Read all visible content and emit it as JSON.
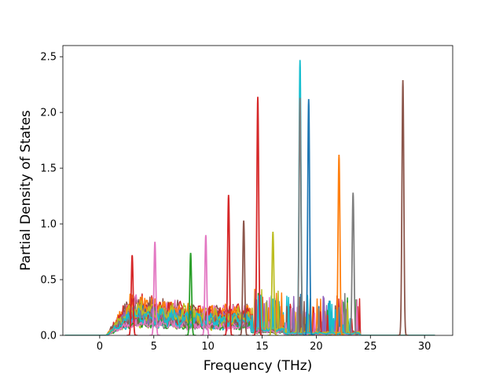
{
  "chart_data": {
    "type": "line",
    "title": "",
    "xlabel": "Frequency (THz)",
    "ylabel": "Partial Density of States",
    "xlim": [
      -3.4,
      32.6
    ],
    "ylim": [
      0,
      2.6
    ],
    "xticks": [
      0,
      5,
      10,
      15,
      20,
      25,
      30
    ],
    "yticks": [
      0.0,
      0.5,
      1.0,
      1.5,
      2.0,
      2.5
    ],
    "xtick_labels": [
      "0",
      "5",
      "10",
      "15",
      "20",
      "25",
      "30"
    ],
    "ytick_labels": [
      "0.0",
      "0.5",
      "1.0",
      "1.5",
      "2.0",
      "2.5"
    ],
    "grid": false,
    "legend": "none",
    "data_x_range": [
      -3.2,
      31.0
    ],
    "notable_peaks": [
      {
        "x": 14.6,
        "y": 2.14,
        "color": "#d62728"
      },
      {
        "x": 18.5,
        "y": 2.47,
        "color": "#17becf"
      },
      {
        "x": 18.5,
        "y": 2.13,
        "color": "#7f7f7f"
      },
      {
        "x": 19.3,
        "y": 2.12,
        "color": "#1f77b4"
      },
      {
        "x": 22.1,
        "y": 1.62,
        "color": "#ff7f0e"
      },
      {
        "x": 28.0,
        "y": 2.29,
        "color": "#8c564b"
      },
      {
        "x": 23.4,
        "y": 1.28,
        "color": "#7f7f7f"
      },
      {
        "x": 11.9,
        "y": 1.26,
        "color": "#d62728"
      },
      {
        "x": 9.8,
        "y": 0.9,
        "color": "#e377c2"
      },
      {
        "x": 8.4,
        "y": 0.74,
        "color": "#2ca02c"
      },
      {
        "x": 16.0,
        "y": 0.93,
        "color": "#bcbd22"
      },
      {
        "x": 13.3,
        "y": 1.03,
        "color": "#8c564b"
      },
      {
        "x": 3.0,
        "y": 0.72,
        "color": "#d62728"
      },
      {
        "x": 5.1,
        "y": 0.84,
        "color": "#e377c2"
      }
    ],
    "series_colors": [
      "#1f77b4",
      "#ff7f0e",
      "#2ca02c",
      "#d62728",
      "#9467bd",
      "#8c564b",
      "#e377c2",
      "#7f7f7f",
      "#bcbd22",
      "#17becf"
    ]
  }
}
